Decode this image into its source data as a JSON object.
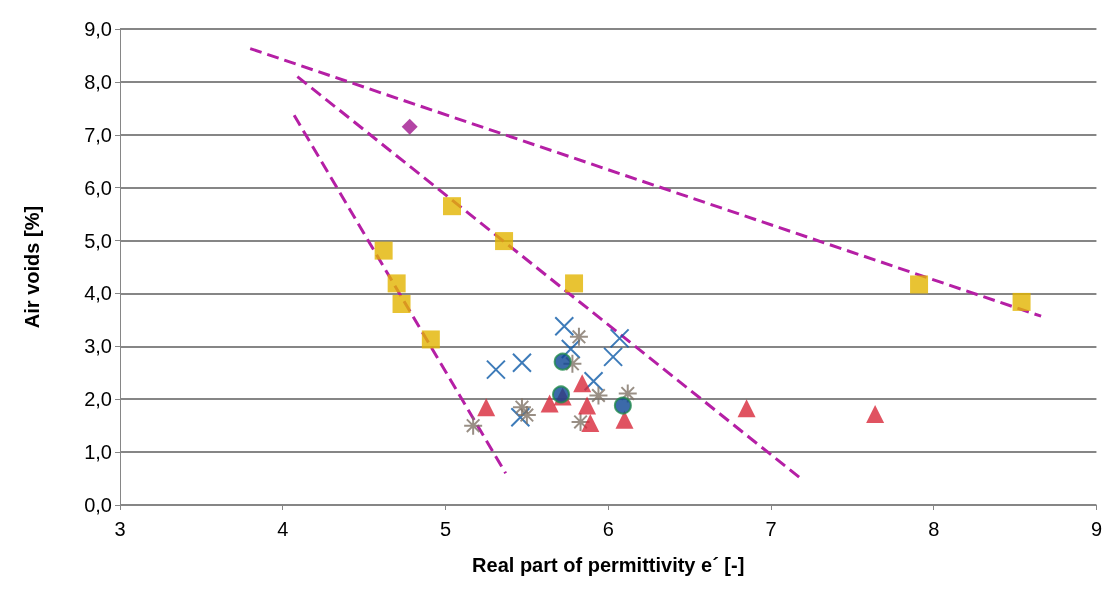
{
  "chart_data": {
    "type": "scatter",
    "xlabel": "Real part of permittivity e´ [-]",
    "ylabel": "Air voids [%]",
    "xlim": [
      3,
      9
    ],
    "xticks": [
      3,
      4,
      5,
      6,
      7,
      8,
      9
    ],
    "ylim": [
      0,
      9
    ],
    "yticks": [
      {
        "value": 0,
        "label": "0,0"
      },
      {
        "value": 1,
        "label": "1,0"
      },
      {
        "value": 2,
        "label": "2,0"
      },
      {
        "value": 3,
        "label": "3,0"
      },
      {
        "value": 4,
        "label": "4,0"
      },
      {
        "value": 5,
        "label": "5,0"
      },
      {
        "value": 6,
        "label": "6,0"
      },
      {
        "value": 7,
        "label": "7,0"
      },
      {
        "value": 8,
        "label": "8,0"
      },
      {
        "value": 9,
        "label": "9,0"
      }
    ],
    "grid": "y",
    "series": [
      {
        "type": "line",
        "color": "#b51fa5",
        "marker": "none",
        "line_style": "dashed",
        "x": [
          3.8,
          8.66
        ],
        "values": [
          8.63,
          3.57
        ]
      },
      {
        "type": "line",
        "color": "#b51fa5",
        "marker": "none",
        "line_style": "dashed",
        "x": [
          4.07,
          5.37
        ],
        "values": [
          7.37,
          0.6
        ]
      },
      {
        "type": "line",
        "color": "#b51fa5",
        "marker": "none",
        "line_style": "dashed",
        "x": [
          4.09,
          7.2
        ],
        "values": [
          8.1,
          0.46
        ]
      },
      {
        "color": "#e2b400",
        "marker": "square",
        "x": [
          4.62,
          4.7,
          4.73,
          4.91,
          5.04,
          5.36,
          5.79,
          7.91,
          8.54
        ],
        "values": [
          4.81,
          4.19,
          3.8,
          3.13,
          5.65,
          4.99,
          4.19,
          4.17,
          3.84
        ]
      },
      {
        "color": "#a0168f",
        "marker": "diamond",
        "x": [
          4.78
        ],
        "values": [
          7.15
        ]
      },
      {
        "color": "#0d5aa7",
        "marker": "cross",
        "x": [
          5.73,
          5.31,
          5.47,
          5.77,
          6.07,
          6.03,
          5.91,
          5.46
        ],
        "values": [
          3.38,
          2.56,
          2.69,
          2.95,
          3.15,
          2.8,
          2.34,
          1.66
        ]
      },
      {
        "color": "#7f7366",
        "x": [
          5.82,
          5.78,
          5.94,
          6.12,
          5.47,
          5.5,
          5.83,
          5.17
        ],
        "values": [
          3.18,
          2.67,
          2.07,
          2.11,
          1.85,
          1.7,
          1.57,
          1.5
        ]
      },
      {
        "color": "#d8283a",
        "marker": "triangle",
        "x": [
          5.25,
          5.64,
          5.72,
          5.84,
          5.87,
          5.89,
          6.1,
          6.85,
          7.64
        ],
        "values": [
          1.85,
          1.92,
          2.05,
          2.3,
          1.88,
          1.55,
          1.61,
          1.83,
          1.72
        ]
      },
      {
        "color": "#0b4595",
        "marker": "circle",
        "x": [
          5.72,
          5.71,
          6.09
        ],
        "values": [
          2.71,
          2.09,
          1.88
        ]
      }
    ]
  }
}
